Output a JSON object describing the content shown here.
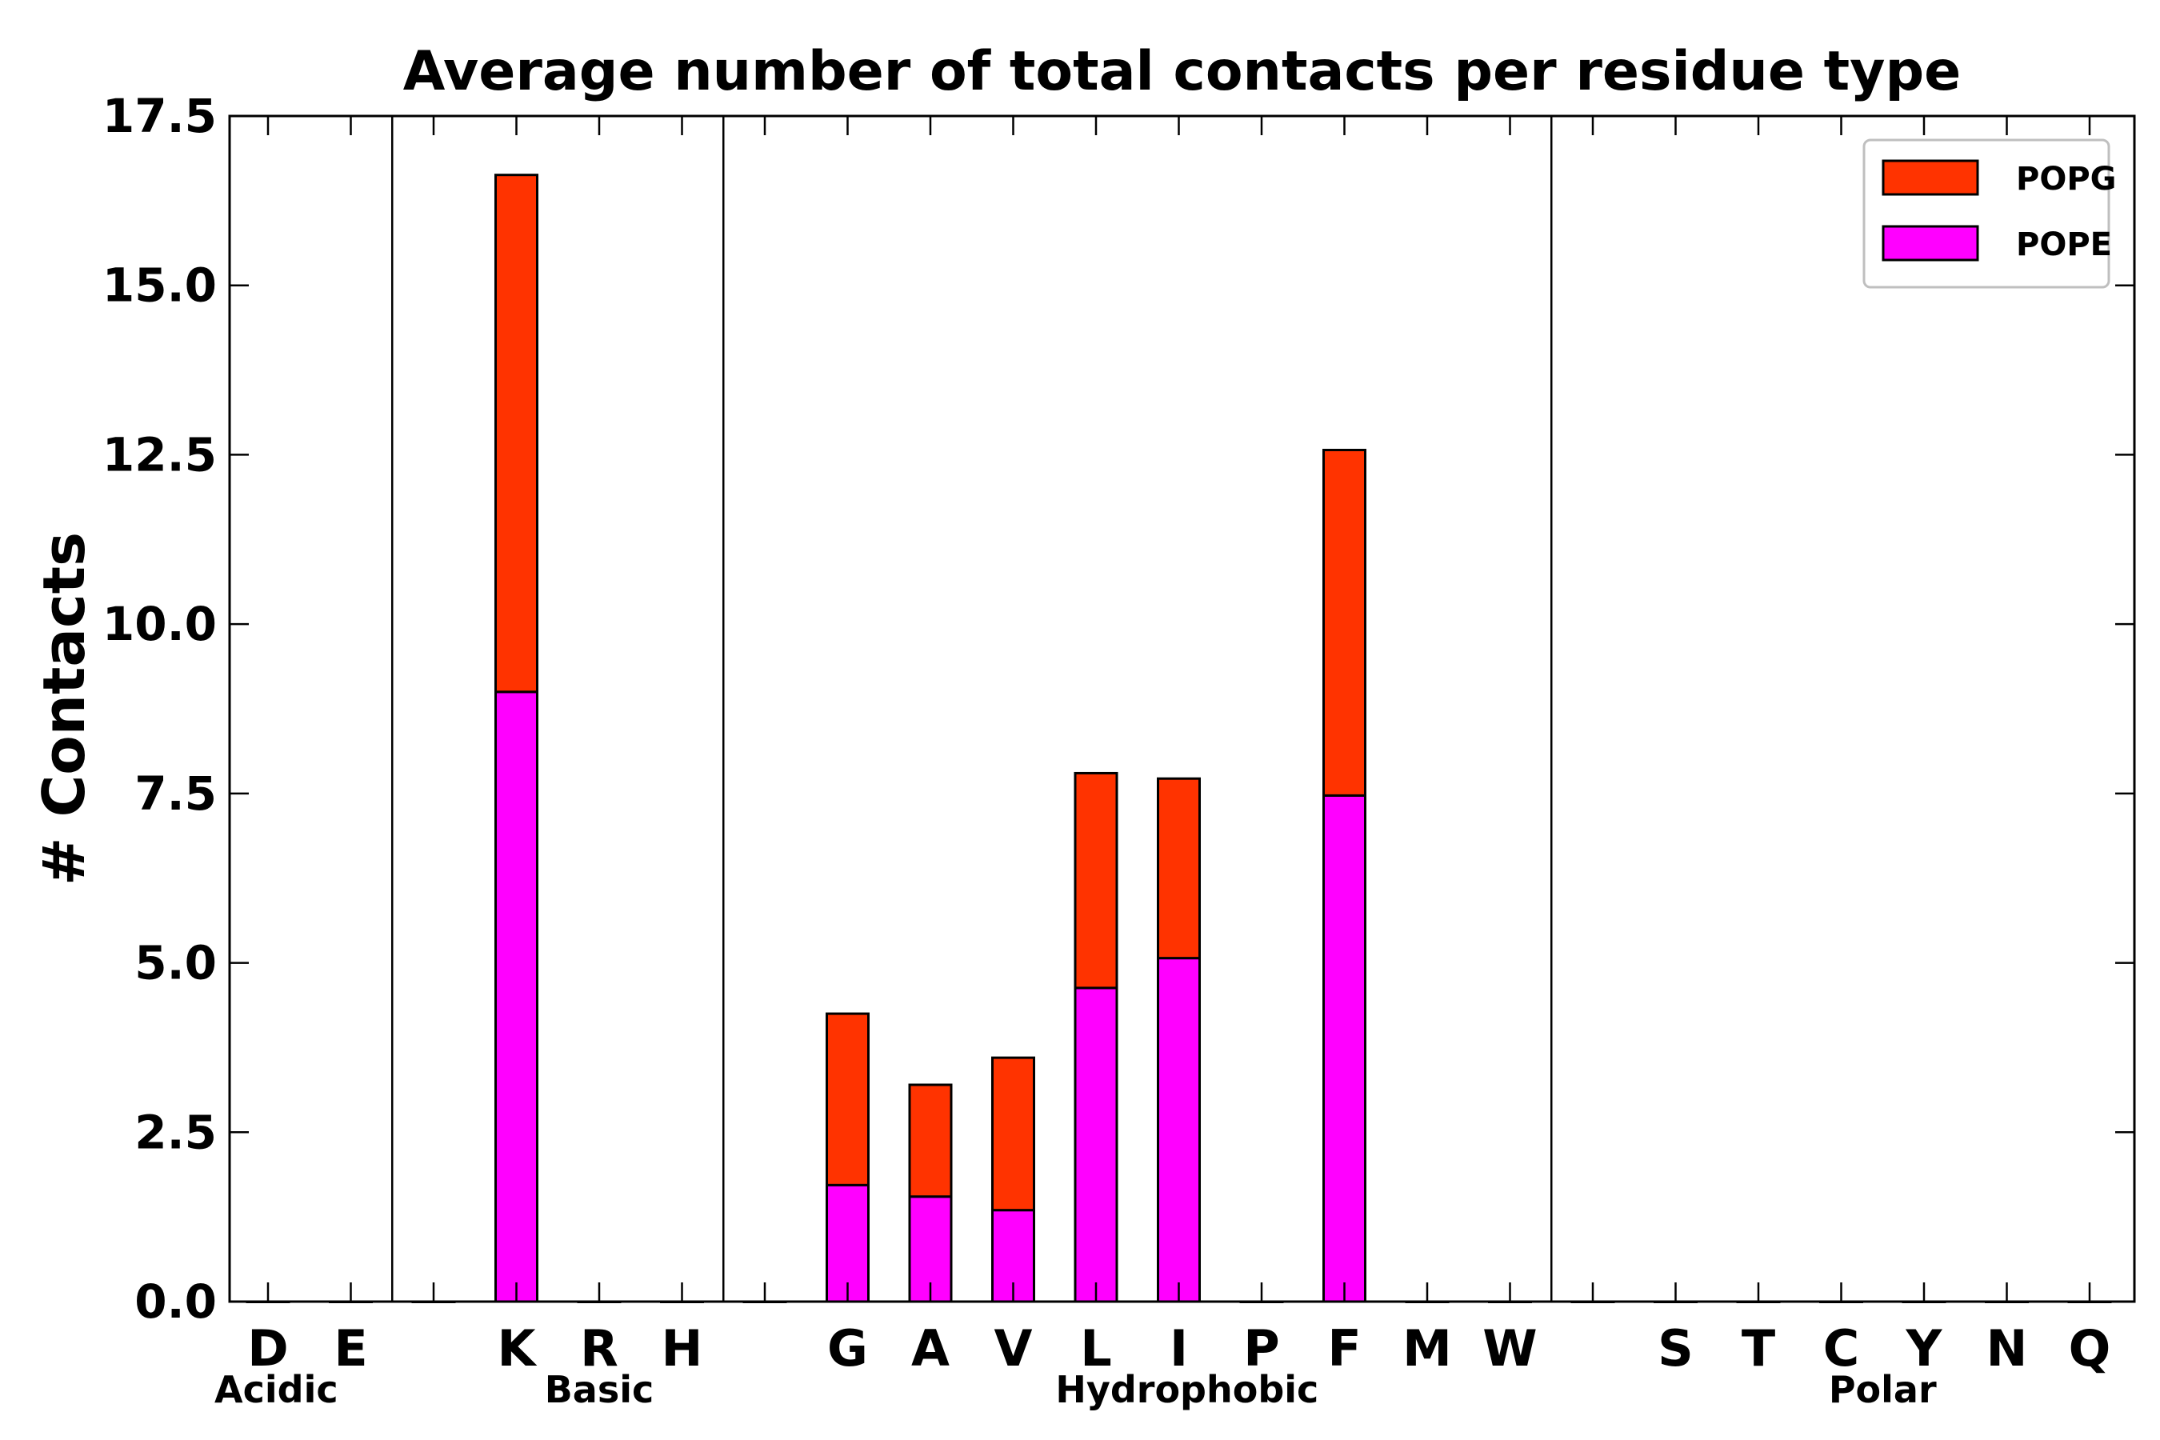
{
  "chart_data": {
    "type": "bar",
    "stacked": true,
    "title": "Average number of total contacts per residue type",
    "xlabel": "",
    "ylabel": "# Contacts",
    "ylim": [
      0,
      17.5
    ],
    "yticks": [
      "0.0",
      "2.5",
      "5.0",
      "7.5",
      "10.0",
      "12.5",
      "15.0",
      "17.5"
    ],
    "slots": [
      "D",
      "E",
      "",
      "K",
      "R",
      "H",
      "",
      "G",
      "A",
      "V",
      "L",
      "I",
      "P",
      "F",
      "M",
      "W",
      "",
      "S",
      "T",
      "C",
      "Y",
      "N",
      "Q"
    ],
    "groups": [
      {
        "label": "Acidic",
        "center_slot": 0.1
      },
      {
        "label": "Basic",
        "center_slot": 4.0
      },
      {
        "label": "Hydrophobic",
        "center_slot": 11.1
      },
      {
        "label": "Polar",
        "center_slot": 19.5
      }
    ],
    "separators_after_slot": [
      1.5,
      5.5,
      15.5
    ],
    "series": [
      {
        "name": "POPE",
        "color": "#ff00ff",
        "values": [
          0,
          0,
          0,
          9.0,
          0,
          0,
          0,
          1.72,
          1.55,
          1.35,
          4.63,
          5.07,
          0,
          7.47,
          0,
          0,
          0,
          0,
          0,
          0,
          0,
          0,
          0
        ]
      },
      {
        "name": "POPG",
        "color": "#ff3300",
        "values": [
          0,
          0,
          0,
          7.63,
          0,
          0,
          0,
          2.53,
          1.65,
          2.25,
          3.17,
          2.65,
          0,
          5.1,
          0,
          0,
          0,
          0,
          0,
          0,
          0,
          0,
          0
        ]
      }
    ],
    "legend": {
      "placement": "top-right",
      "order": [
        "POPG",
        "POPE"
      ]
    }
  }
}
